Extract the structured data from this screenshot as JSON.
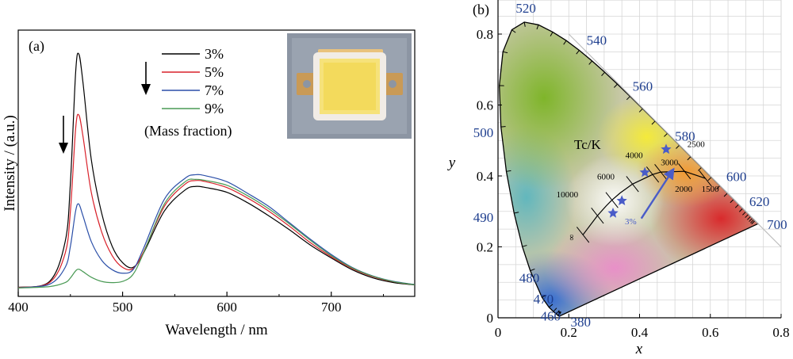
{
  "chart_data": [
    {
      "type": "line",
      "panel_label": "(a)",
      "xlabel": "Wavelength / nm",
      "ylabel": "Intensity / (a.u.)",
      "xlim": [
        400,
        780
      ],
      "xticks": [
        "400",
        "500",
        "600",
        "700"
      ],
      "legend_note": "(Mass fraction)",
      "legend_position": "top-center",
      "photo": "LED chip photo (inset, top-right)",
      "grid": false,
      "series": [
        {
          "name": "3%",
          "color": "#000000",
          "x": [
            400,
            430,
            445,
            450,
            455,
            458,
            462,
            470,
            480,
            490,
            500,
            510,
            520,
            540,
            560,
            570,
            580,
            600,
            620,
            640,
            660,
            680,
            700,
            720,
            740,
            760,
            780
          ],
          "y": [
            0.5,
            3,
            20,
            45,
            92,
            100,
            88,
            55,
            32,
            18,
            11,
            9,
            15,
            33,
            42,
            43.5,
            43,
            41,
            36.5,
            31,
            25,
            18.5,
            13,
            8,
            4.5,
            2.5,
            1.5
          ]
        },
        {
          "name": "5%",
          "color": "#d9212a",
          "x": [
            400,
            430,
            445,
            450,
            455,
            458,
            462,
            470,
            480,
            490,
            500,
            510,
            520,
            540,
            560,
            570,
            580,
            600,
            620,
            640,
            660,
            680,
            700,
            720,
            740,
            760,
            780
          ],
          "y": [
            0.4,
            2.5,
            15,
            33,
            68,
            74,
            65,
            41,
            24,
            14,
            9,
            8.5,
            15.5,
            35,
            44.5,
            46,
            45.5,
            43,
            38.5,
            33,
            26.5,
            19.5,
            13.5,
            8.5,
            5,
            2.8,
            1.6
          ]
        },
        {
          "name": "7%",
          "color": "#2b4fa8",
          "x": [
            400,
            430,
            445,
            450,
            455,
            458,
            462,
            470,
            480,
            490,
            500,
            510,
            520,
            540,
            560,
            570,
            580,
            600,
            620,
            640,
            660,
            680,
            700,
            720,
            740,
            760,
            780
          ],
          "y": [
            0.3,
            1.8,
            9,
            18,
            33,
            36,
            31,
            20,
            12,
            8,
            6.5,
            8,
            17,
            38,
            47,
            48.5,
            48,
            45.5,
            40.5,
            35,
            28,
            21,
            14.5,
            9,
            5.3,
            3,
            1.7
          ]
        },
        {
          "name": "9%",
          "color": "#4a9a55",
          "x": [
            400,
            430,
            445,
            450,
            455,
            458,
            462,
            470,
            480,
            490,
            500,
            510,
            520,
            540,
            560,
            570,
            580,
            600,
            620,
            640,
            660,
            680,
            700,
            720,
            740,
            760,
            780
          ],
          "y": [
            0.2,
            0.8,
            2.5,
            4.5,
            7.5,
            8.2,
            7.2,
            4.8,
            3,
            2.5,
            3,
            6,
            15,
            36,
            45.5,
            46.5,
            46,
            44,
            39.5,
            34,
            27.5,
            20.5,
            14,
            8.8,
            5.2,
            2.9,
            1.6
          ]
        }
      ]
    },
    {
      "type": "scatter",
      "panel_label": "(b)",
      "xlabel": "x",
      "ylabel": "y",
      "xlim": [
        0,
        0.8
      ],
      "ylim": [
        0,
        0.85
      ],
      "xticks": [
        "0",
        "0.2",
        "0.4",
        "0.6",
        "0.8"
      ],
      "yticks": [
        "0",
        "0.2",
        "0.4",
        "0.6",
        "0.8"
      ],
      "grid": true,
      "wavelength_labels": [
        "380",
        "460",
        "470",
        "480",
        "490",
        "500",
        "520",
        "540",
        "560",
        "580",
        "600",
        "620",
        "700"
      ],
      "planckian_label": "Tc/K",
      "cct_labels": [
        "∞",
        "10000",
        "6000",
        "4000",
        "3000",
        "2500",
        "2000",
        "1500"
      ],
      "points": [
        {
          "x": 0.325,
          "y": 0.295
        },
        {
          "x": 0.35,
          "y": 0.33
        },
        {
          "x": 0.415,
          "y": 0.41
        },
        {
          "x": 0.475,
          "y": 0.475
        }
      ],
      "arrow_label": "3%",
      "marker_color": "#4a5cc8"
    }
  ]
}
